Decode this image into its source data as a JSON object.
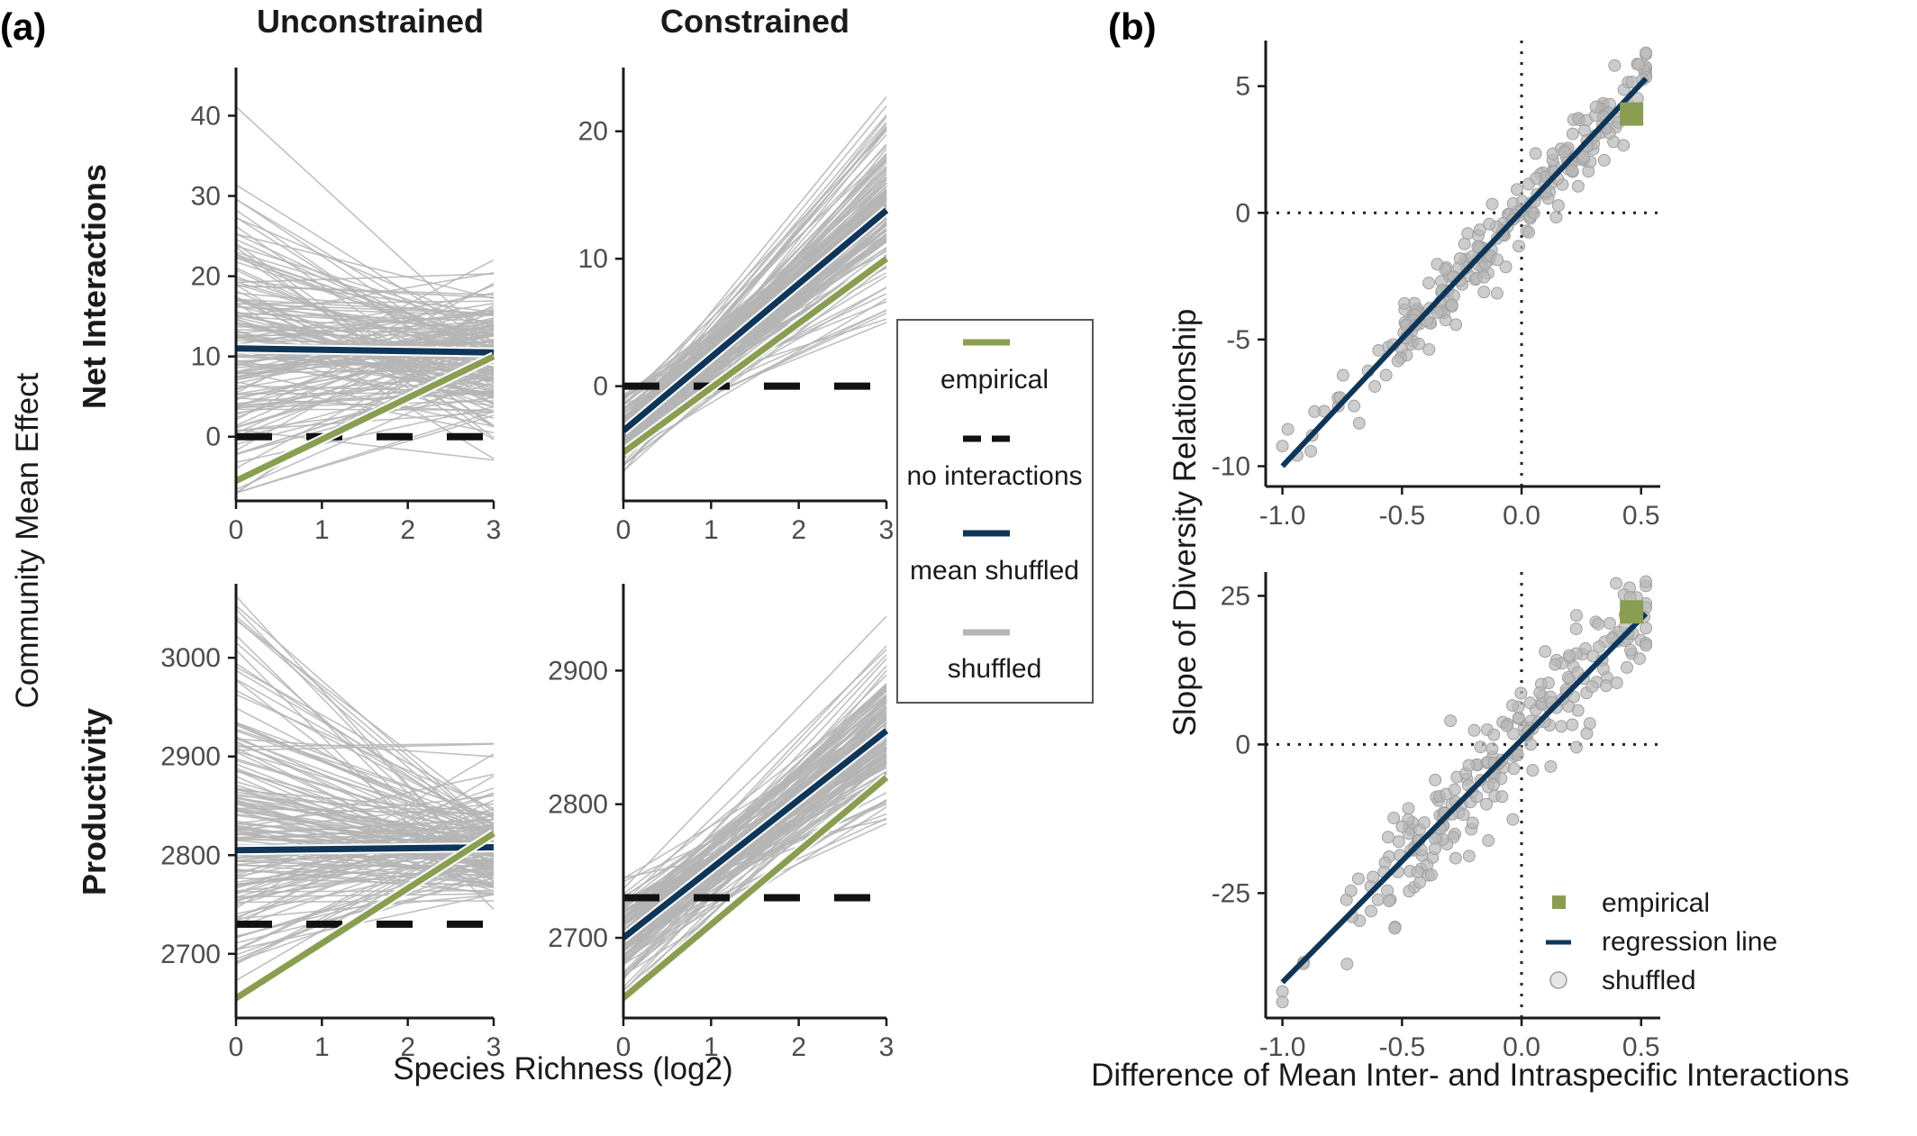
{
  "colors": {
    "empirical": "#8a9e52",
    "mean_shuffled": "#0f3658",
    "shuffled": "#b5b5b5",
    "no_interactions": "#111111",
    "axis": "#1a1a1a"
  },
  "panel_labels": {
    "a": "(a)",
    "b": "(b)"
  },
  "column_titles": {
    "unconstrained": "Unconstrained",
    "constrained": "Constrained"
  },
  "row_titles": {
    "net": "Net Interactions",
    "prod": "Productivity"
  },
  "axis_labels": {
    "a_x": "Species Richness (log2)",
    "a_y": "Community Mean Effect",
    "b_x": "Difference of Mean Inter- and Intraspecific Interactions",
    "b_y": "Slope of Diversity Relationship"
  },
  "legend_a": [
    {
      "key": "empirical",
      "label": "empirical"
    },
    {
      "key": "no_interactions",
      "label": "no interactions"
    },
    {
      "key": "mean_shuffled",
      "label": "mean shuffled"
    },
    {
      "key": "shuffled",
      "label": "shuffled"
    }
  ],
  "legend_b": [
    {
      "key": "empirical",
      "label": "empirical"
    },
    {
      "key": "regression",
      "label": "regression line"
    },
    {
      "key": "shuffled",
      "label": "shuffled"
    }
  ],
  "chart_data": [
    {
      "id": "a-net-unconstrained",
      "type": "line",
      "xlim": [
        0,
        3
      ],
      "ylim": [
        -8,
        46
      ],
      "x_ticks": [
        0,
        1,
        2,
        3
      ],
      "y_ticks": [
        0,
        10,
        20,
        30,
        40
      ],
      "x": [
        0,
        3
      ],
      "empirical": [
        -5.5,
        10
      ],
      "mean_shuffled": [
        11,
        10.5
      ],
      "no_interactions": [
        0,
        0
      ],
      "shuffled_band": {
        "start": [
          -7,
          44
        ],
        "end": [
          -3,
          25
        ],
        "center": [
          11,
          10.5
        ],
        "count": 160
      }
    },
    {
      "id": "a-net-constrained",
      "type": "line",
      "xlim": [
        0,
        3
      ],
      "ylim": [
        -9,
        25
      ],
      "x_ticks": [
        0,
        1,
        2,
        3
      ],
      "y_ticks": [
        0,
        10,
        20
      ],
      "x": [
        0,
        3
      ],
      "empirical": [
        -5.2,
        10
      ],
      "mean_shuffled": [
        -3.5,
        13.8
      ],
      "no_interactions": [
        0,
        0
      ],
      "shuffled_band": {
        "start": [
          -7,
          0
        ],
        "end": [
          5,
          24
        ],
        "center": [
          -3.5,
          13.8
        ],
        "count": 160
      }
    },
    {
      "id": "a-prod-unconstrained",
      "type": "line",
      "xlim": [
        0,
        3
      ],
      "ylim": [
        2635,
        3075
      ],
      "x_ticks": [
        0,
        1,
        2,
        3
      ],
      "y_ticks": [
        2700,
        2800,
        2900,
        3000
      ],
      "x": [
        0,
        3
      ],
      "empirical": [
        2655,
        2822
      ],
      "mean_shuffled": [
        2805,
        2808
      ],
      "no_interactions": [
        2730,
        2730
      ],
      "shuffled_band": {
        "start": [
          2660,
          3065
        ],
        "end": [
          2745,
          2935
        ],
        "center": [
          2805,
          2808
        ],
        "count": 160
      }
    },
    {
      "id": "a-prod-constrained",
      "type": "line",
      "xlim": [
        0,
        3
      ],
      "ylim": [
        2640,
        2965
      ],
      "x_ticks": [
        0,
        1,
        2,
        3
      ],
      "y_ticks": [
        2700,
        2800,
        2900
      ],
      "x": [
        0,
        3
      ],
      "empirical": [
        2655,
        2820
      ],
      "mean_shuffled": [
        2700,
        2855
      ],
      "no_interactions": [
        2730,
        2730
      ],
      "shuffled_band": {
        "start": [
          2650,
          2745
        ],
        "end": [
          2780,
          2950
        ],
        "center": [
          2700,
          2855
        ],
        "count": 160
      }
    },
    {
      "id": "b-net",
      "type": "scatter",
      "xlim": [
        -1.07,
        0.58
      ],
      "ylim": [
        -10.8,
        6.8
      ],
      "x_ticks": [
        -1.0,
        -0.5,
        0.0,
        0.5
      ],
      "y_ticks": [
        -10,
        -5,
        0,
        5
      ],
      "x_tick_labels": [
        "-1.0",
        "-0.5",
        "0.0",
        "0.5"
      ],
      "empirical_point": [
        0.46,
        3.9
      ],
      "regression": {
        "x": [
          -1.0,
          0.52
        ],
        "y": [
          -10.0,
          5.3
        ]
      },
      "shuffled_noise_sd": 0.7,
      "shuffled_x_range": [
        -1.0,
        0.52
      ],
      "shuffled_count": 230
    },
    {
      "id": "b-prod",
      "type": "scatter",
      "xlim": [
        -1.07,
        0.58
      ],
      "ylim": [
        -46,
        29
      ],
      "x_ticks": [
        -1.0,
        -0.5,
        0.0,
        0.5
      ],
      "y_ticks": [
        -25,
        0,
        25
      ],
      "x_tick_labels": [
        "-1.0",
        "-0.5",
        "0.0",
        "0.5"
      ],
      "empirical_point": [
        0.46,
        22.3
      ],
      "regression": {
        "x": [
          -1.0,
          0.52
        ],
        "y": [
          -40.0,
          22.0
        ]
      },
      "shuffled_noise_sd": 5,
      "shuffled_x_range": [
        -1.0,
        0.52
      ],
      "shuffled_count": 230
    }
  ]
}
